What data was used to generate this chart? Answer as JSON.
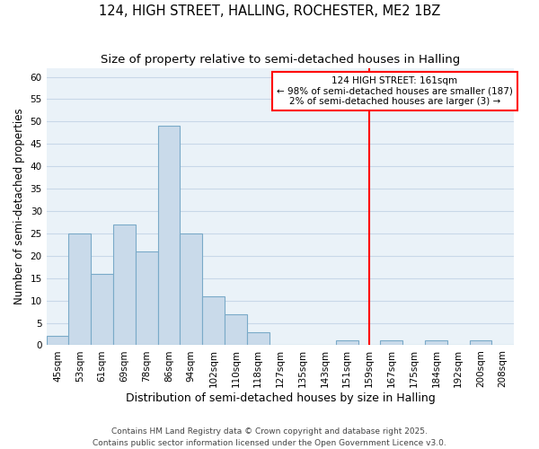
{
  "title": "124, HIGH STREET, HALLING, ROCHESTER, ME2 1BZ",
  "subtitle": "Size of property relative to semi-detached houses in Halling",
  "xlabel": "Distribution of semi-detached houses by size in Halling",
  "ylabel": "Number of semi-detached properties",
  "bar_labels": [
    "45sqm",
    "53sqm",
    "61sqm",
    "69sqm",
    "78sqm",
    "86sqm",
    "94sqm",
    "102sqm",
    "110sqm",
    "118sqm",
    "127sqm",
    "135sqm",
    "143sqm",
    "151sqm",
    "159sqm",
    "167sqm",
    "175sqm",
    "184sqm",
    "192sqm",
    "200sqm",
    "208sqm"
  ],
  "bar_values": [
    2,
    25,
    16,
    27,
    21,
    49,
    25,
    11,
    7,
    3,
    0,
    0,
    0,
    1,
    0,
    1,
    0,
    1,
    0,
    1,
    0
  ],
  "bar_color": "#c9daea",
  "bar_edge_color": "#7aaac8",
  "grid_color": "#c8d8e8",
  "background_color": "#eaf2f8",
  "vline_color": "red",
  "vline_index": 14,
  "annotation_title": "124 HIGH STREET: 161sqm",
  "annotation_line1": "← 98% of semi-detached houses are smaller (187)",
  "annotation_line2": "2% of semi-detached houses are larger (3) →",
  "ylim": [
    0,
    62
  ],
  "yticks": [
    0,
    5,
    10,
    15,
    20,
    25,
    30,
    35,
    40,
    45,
    50,
    55,
    60
  ],
  "footer1": "Contains HM Land Registry data © Crown copyright and database right 2025.",
  "footer2": "Contains public sector information licensed under the Open Government Licence v3.0.",
  "title_fontsize": 10.5,
  "subtitle_fontsize": 9.5,
  "xlabel_fontsize": 9,
  "ylabel_fontsize": 8.5,
  "tick_fontsize": 7.5,
  "annotation_fontsize": 7.5,
  "footer_fontsize": 6.5
}
